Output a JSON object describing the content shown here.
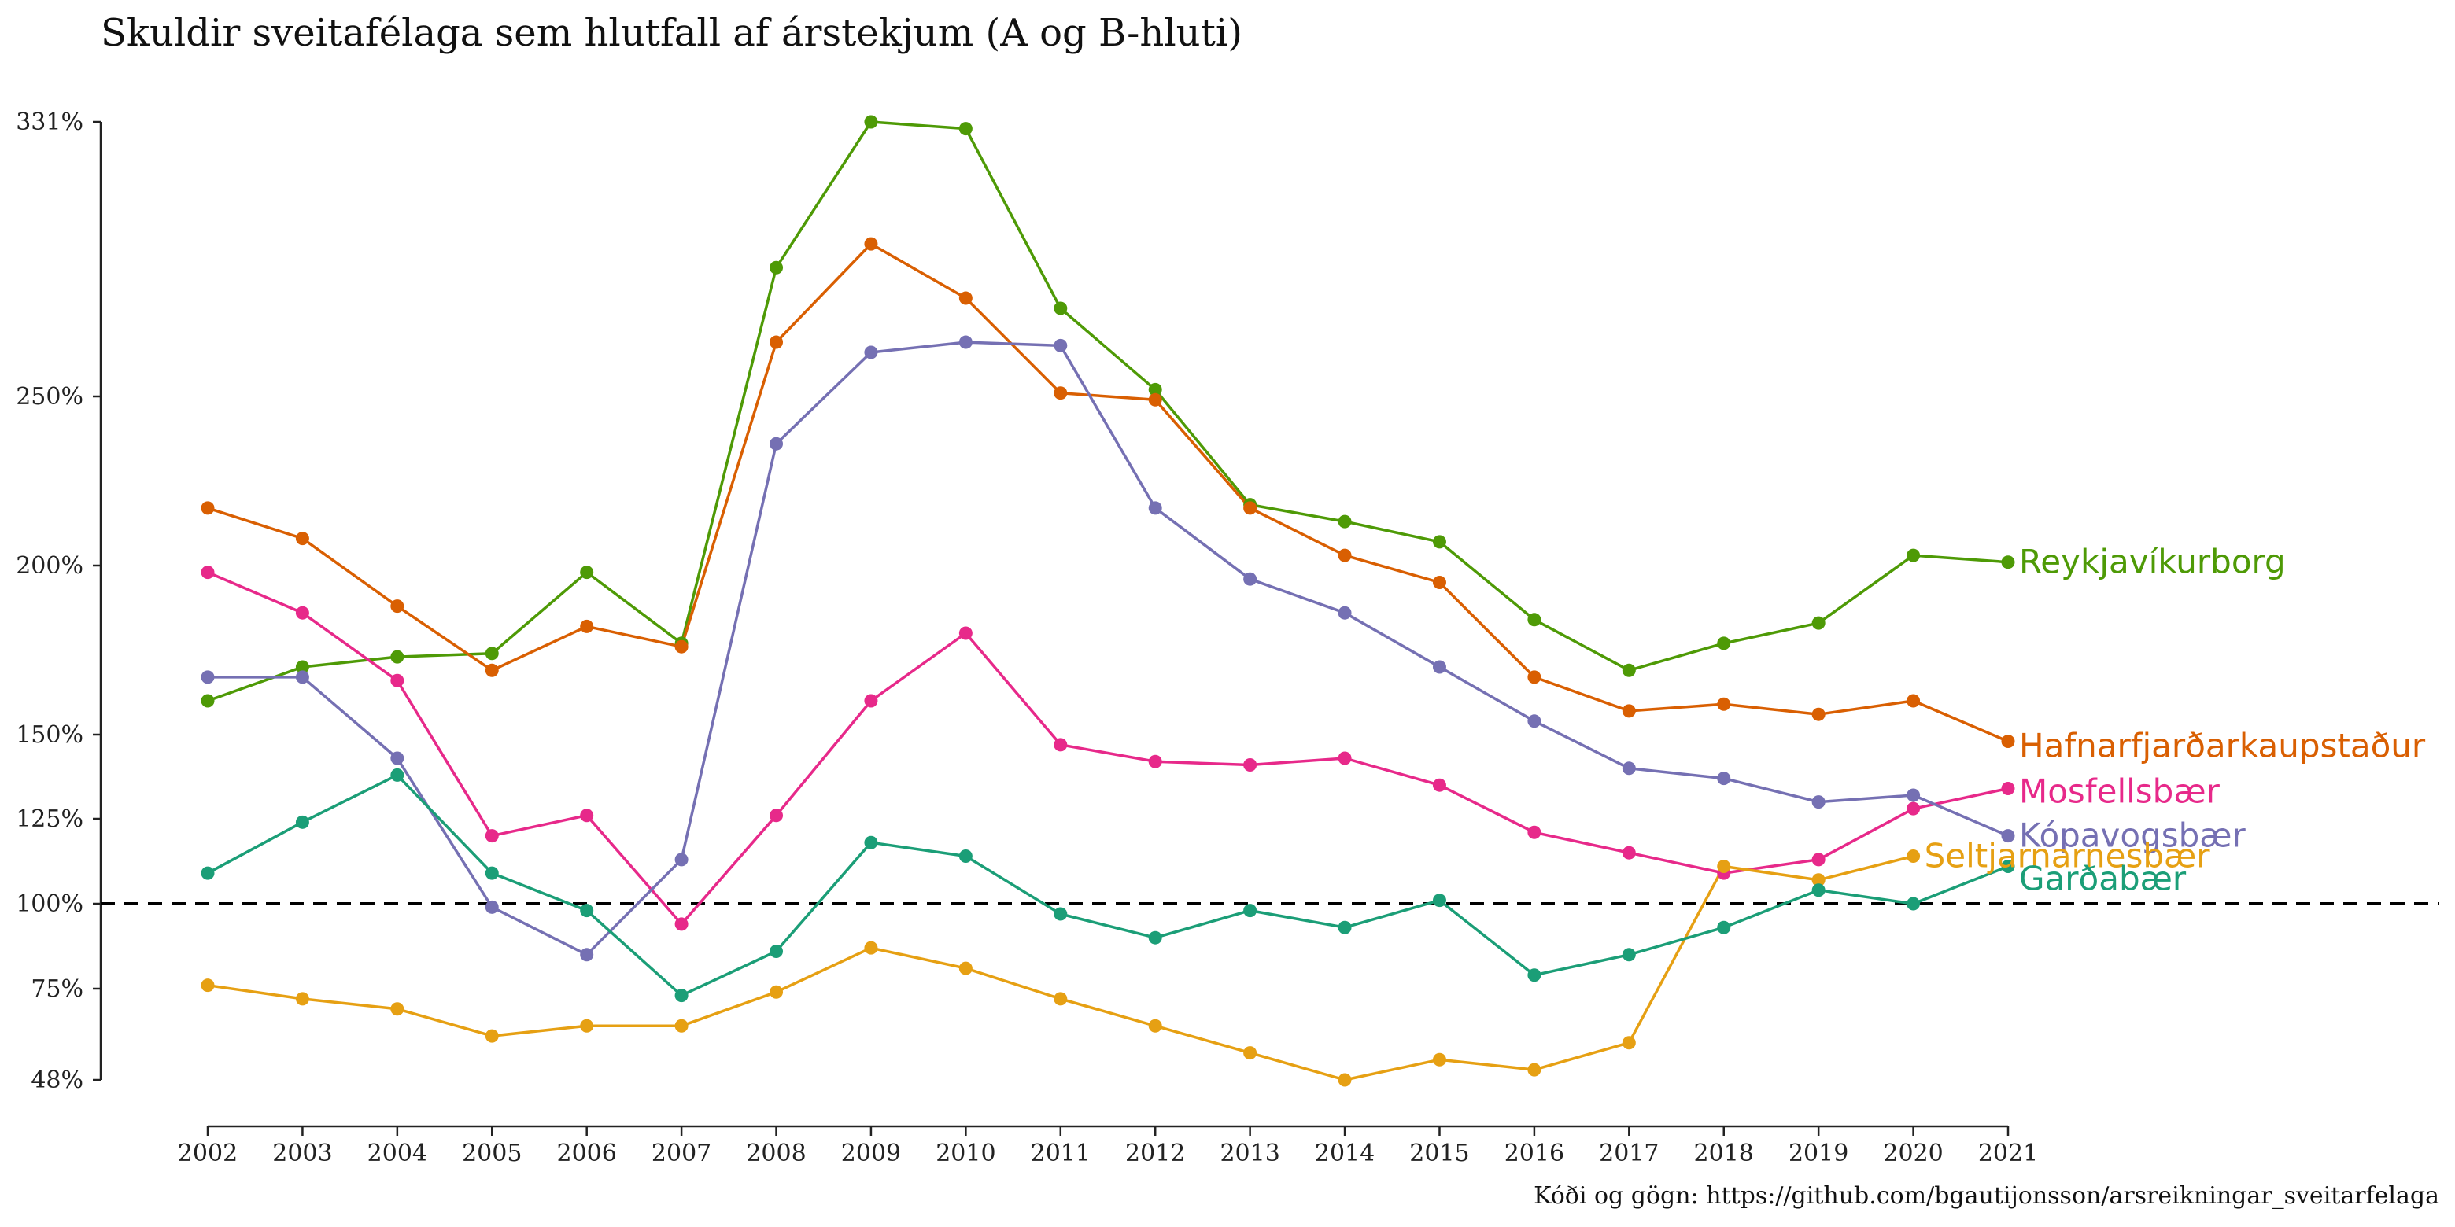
{
  "chart_data": {
    "type": "line",
    "title": "Skuldir sveitafélaga sem hlutfall af árstekjum (A og B-hluti)",
    "caption": "Kóði og gögn: https://github.com/bgautijonsson/arsreikningar_sveitarfelaga",
    "xlabel": "",
    "ylabel": "",
    "x": [
      2002,
      2003,
      2004,
      2005,
      2006,
      2007,
      2008,
      2009,
      2010,
      2011,
      2012,
      2013,
      2014,
      2015,
      2016,
      2017,
      2018,
      2019,
      2020,
      2021
    ],
    "x_tick_labels": [
      "2002",
      "2003",
      "2004",
      "2005",
      "2006",
      "2007",
      "2008",
      "2009",
      "2010",
      "2011",
      "2012",
      "2013",
      "2014",
      "2015",
      "2016",
      "2017",
      "2018",
      "2019",
      "2020",
      "2021"
    ],
    "ylim": [
      48,
      331
    ],
    "y_ticks": [
      48,
      75,
      100,
      125,
      150,
      200,
      250,
      331
    ],
    "y_tick_labels": [
      "48%",
      "75%",
      "100%",
      "125%",
      "150%",
      "200%",
      "250%",
      "331%"
    ],
    "reference_line": {
      "y": 100,
      "style": "dashed"
    },
    "grid": false,
    "legend": "direct labels at line ends",
    "series": [
      {
        "name": "Reykjavíkurborg",
        "color": "#4e9a06",
        "values": [
          160,
          170,
          173,
          174,
          198,
          177,
          288,
          331,
          329,
          276,
          252,
          218,
          213,
          207,
          184,
          169,
          177,
          183,
          203,
          201
        ]
      },
      {
        "name": "Hafnarfjarðarkaupstaður",
        "color": "#d95f02",
        "values": [
          217,
          208,
          188,
          169,
          182,
          176,
          266,
          295,
          279,
          251,
          249,
          217,
          203,
          195,
          167,
          157,
          159,
          156,
          160,
          148
        ]
      },
      {
        "name": "Mosfellsbær",
        "color": "#e7298a",
        "values": [
          198,
          186,
          166,
          120,
          126,
          94,
          126,
          160,
          180,
          147,
          142,
          141,
          143,
          135,
          121,
          115,
          109,
          113,
          128,
          134
        ]
      },
      {
        "name": "Kópavogsbær",
        "color": "#7570b3",
        "values": [
          167,
          167,
          143,
          99,
          85,
          113,
          236,
          263,
          266,
          265,
          217,
          196,
          186,
          170,
          154,
          140,
          137,
          130,
          132,
          120
        ]
      },
      {
        "name": "Seltjarnarnesbær",
        "color": "#e6a013",
        "values": [
          76,
          72,
          69,
          61,
          64,
          64,
          74,
          87,
          81,
          72,
          64,
          56,
          48,
          54,
          51,
          59,
          111,
          107,
          114,
          null
        ]
      },
      {
        "name": "Garðabær",
        "color": "#1b9e77",
        "values": [
          109,
          124,
          138,
          109,
          98,
          73,
          86,
          118,
          114,
          97,
          90,
          98,
          93,
          101,
          79,
          85,
          93,
          104,
          100,
          111
        ]
      }
    ]
  }
}
